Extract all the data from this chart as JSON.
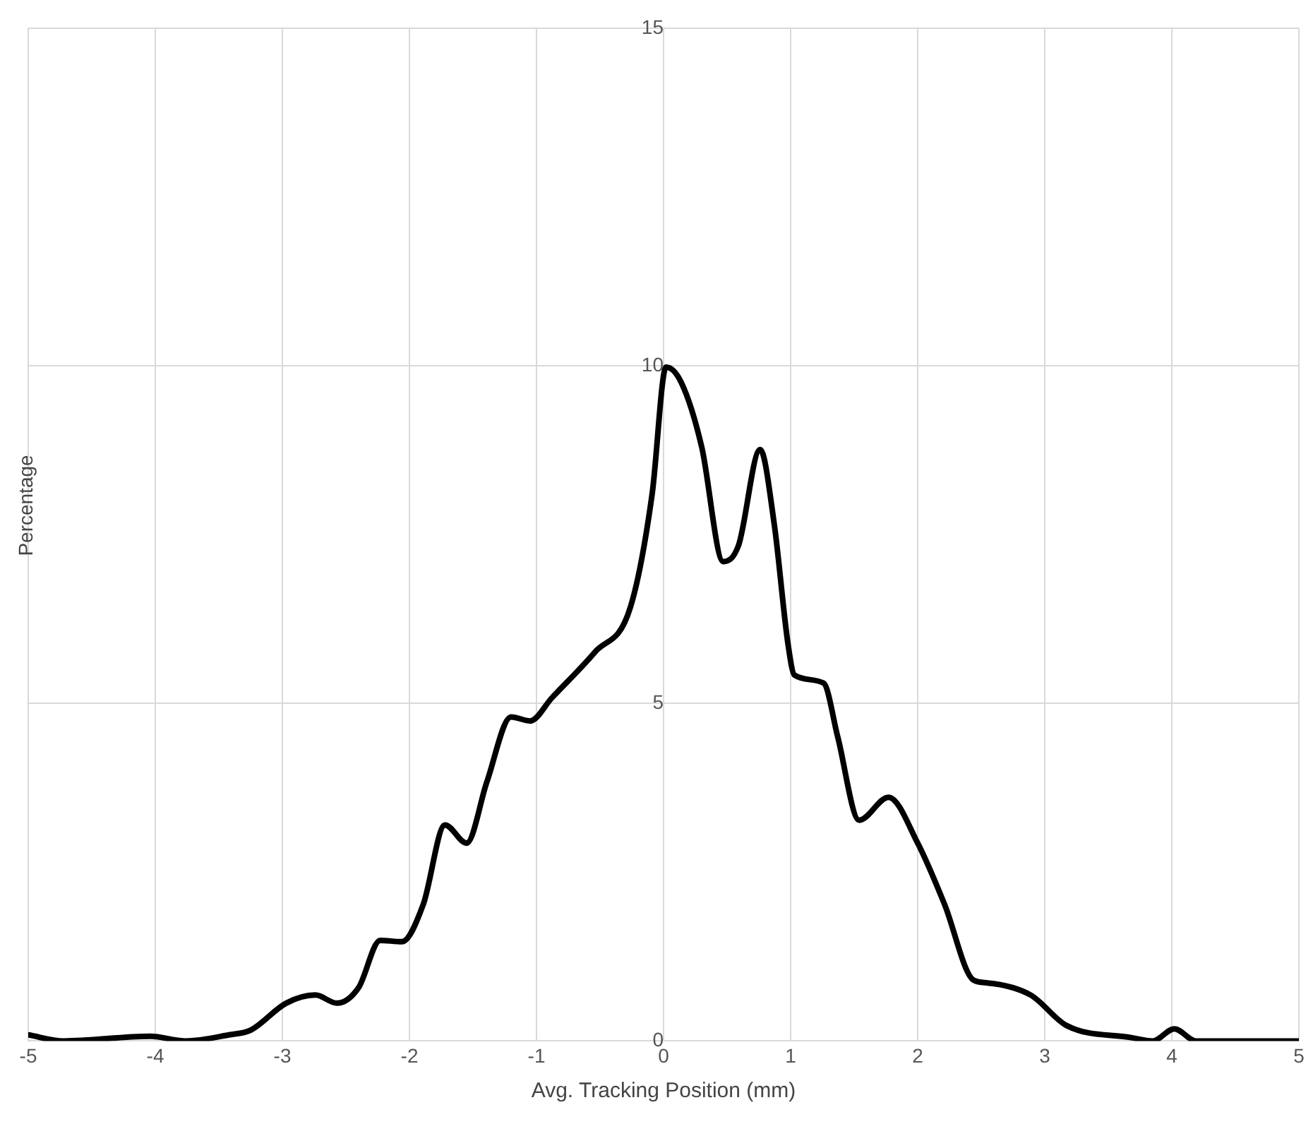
{
  "chart_data": {
    "type": "line",
    "xlabel": "Avg. Tracking Position (mm)",
    "ylabel": "Percentage",
    "x": [
      -5,
      -4.72,
      -4.04,
      -3.76,
      -3.42,
      -3.25,
      -2.97,
      -2.74,
      -2.57,
      -2.4,
      -2.23,
      -2.06,
      -1.89,
      -1.72,
      -1.55,
      -1.39,
      -1.2,
      -1.05,
      -0.88,
      -0.54,
      -0.26,
      -0.09,
      0.02,
      0.14,
      0.3,
      0.47,
      0.59,
      0.76,
      0.87,
      0.98,
      1.03,
      1.26,
      1.37,
      1.54,
      1.77,
      2.0,
      2.21,
      2.44,
      2.55,
      2.89,
      3.17,
      3.68,
      3.85,
      4.02,
      4.19,
      5
    ],
    "series": [
      {
        "color": "#000000",
        "values": [
          0.09,
          0,
          0.07,
          0,
          0.09,
          0.16,
          0.56,
          0.68,
          0.56,
          0.79,
          1.49,
          1.47,
          2.03,
          3.2,
          2.93,
          3.84,
          4.8,
          4.74,
          5.08,
          5.76,
          6.43,
          8.1,
          9.98,
          9.75,
          8.8,
          7.1,
          7.34,
          8.76,
          7.67,
          5.87,
          5.42,
          5.3,
          4.51,
          3.27,
          3.61,
          2.93,
          2.03,
          0.9,
          0.86,
          0.68,
          0.23,
          0.05,
          0,
          0.18,
          0,
          0
        ]
      }
    ],
    "xlim": [
      -5,
      5
    ],
    "ylim": [
      0,
      15
    ],
    "xticks": [
      -5,
      -4,
      -3,
      -2,
      -1,
      0,
      1,
      2,
      3,
      4,
      5
    ],
    "yticks": [
      0,
      5,
      10,
      15
    ],
    "grid": true,
    "legend": false,
    "marker": "none",
    "line_style": "solid"
  }
}
